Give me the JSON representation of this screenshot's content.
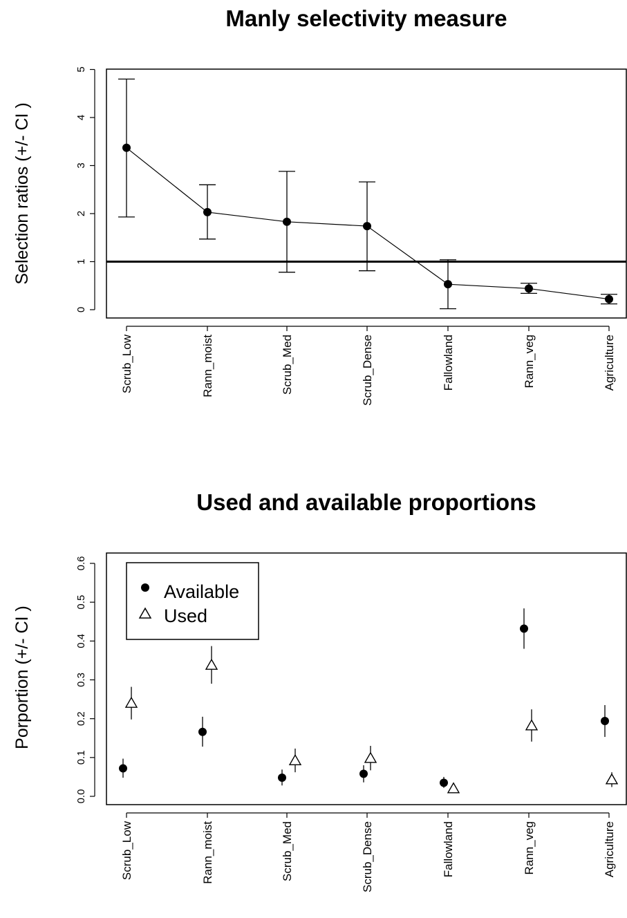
{
  "chart_data": [
    {
      "type": "line",
      "title": "Manly selectivity measure",
      "ylabel": "Selection ratios (+/- CI )",
      "xlabel": "",
      "ylim": [
        0,
        5
      ],
      "yticks": [
        0,
        1,
        2,
        3,
        4,
        5
      ],
      "categories": [
        "Scrub_Low",
        "Rann_moist",
        "Scrub_Med",
        "Scrub_Dense",
        "Fallowland",
        "Rann_veg",
        "Agriculture"
      ],
      "reference_line": 1,
      "series": [
        {
          "values": [
            3.37,
            2.03,
            1.83,
            1.74,
            0.53,
            0.44,
            0.22
          ],
          "lower": [
            1.93,
            1.47,
            0.78,
            0.81,
            0.02,
            0.34,
            0.12
          ],
          "upper": [
            4.8,
            2.6,
            2.88,
            2.66,
            1.04,
            0.55,
            0.32
          ]
        }
      ]
    },
    {
      "type": "scatter",
      "title": "Used and available proportions",
      "ylabel": "Porportion (+/- CI )",
      "xlabel": "",
      "ylim": [
        0,
        0.6
      ],
      "yticks": [
        "0.0",
        "0.1",
        "0.2",
        "0.3",
        "0.4",
        "0.5",
        "0.6"
      ],
      "categories": [
        "Scrub_Low",
        "Rann_moist",
        "Scrub_Med",
        "Scrub_Dense",
        "Fallowland",
        "Rann_veg",
        "Agriculture"
      ],
      "legend_position": "top-left",
      "series": [
        {
          "name": "Available",
          "marker": "filled-circle",
          "values": [
            0.072,
            0.166,
            0.048,
            0.058,
            0.035,
            0.432,
            0.194
          ],
          "lower": [
            0.048,
            0.128,
            0.028,
            0.036,
            0.022,
            0.38,
            0.153
          ],
          "upper": [
            0.097,
            0.205,
            0.069,
            0.08,
            0.05,
            0.484,
            0.235
          ]
        },
        {
          "name": "Used",
          "marker": "open-triangle",
          "values": [
            0.24,
            0.338,
            0.092,
            0.098,
            0.02,
            0.182,
            0.043
          ],
          "lower": [
            0.198,
            0.29,
            0.062,
            0.067,
            0.008,
            0.141,
            0.024
          ],
          "upper": [
            0.282,
            0.387,
            0.123,
            0.13,
            0.033,
            0.224,
            0.062
          ]
        }
      ]
    }
  ]
}
